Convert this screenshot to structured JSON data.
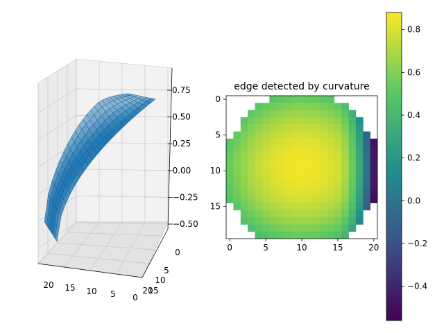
{
  "chart_data": [
    {
      "type": "surface3d",
      "title": "",
      "x_ticks": [
        "0",
        "5",
        "10",
        "15",
        "20"
      ],
      "y_ticks": [
        "0",
        "5",
        "10",
        "15",
        "20"
      ],
      "z_ticks": [
        "−0.50",
        "−0.25",
        "0.00",
        "0.25",
        "0.50",
        "0.75"
      ],
      "zlim": [
        -0.55,
        0.9
      ],
      "surface_color": "#1f77b4",
      "grid": true
    },
    {
      "type": "heatmap",
      "title": "edge detected by curvature",
      "x_ticks": [
        "0",
        "5",
        "10",
        "15",
        "20"
      ],
      "y_ticks": [
        "0",
        "5",
        "10",
        "15"
      ],
      "shape": [
        20,
        21
      ],
      "colormap": "viridis",
      "colorbar": {
        "min": -0.56,
        "max": 0.88,
        "ticks": [
          "−0.4",
          "−0.2",
          "0.0",
          "0.2",
          "0.4",
          "0.6",
          "0.8"
        ]
      },
      "masked_outside_disc": true,
      "row_spans": [
        [
          6,
          14
        ],
        [
          4,
          16
        ],
        [
          3,
          17
        ],
        [
          2,
          18
        ],
        [
          2,
          18
        ],
        [
          1,
          19
        ],
        [
          0,
          20
        ],
        [
          0,
          20
        ],
        [
          0,
          20
        ],
        [
          0,
          20
        ],
        [
          0,
          20
        ],
        [
          0,
          20
        ],
        [
          0,
          20
        ],
        [
          0,
          20
        ],
        [
          0,
          20
        ],
        [
          1,
          19
        ],
        [
          2,
          18
        ],
        [
          2,
          18
        ],
        [
          3,
          17
        ],
        [
          4,
          16
        ]
      ]
    }
  ]
}
